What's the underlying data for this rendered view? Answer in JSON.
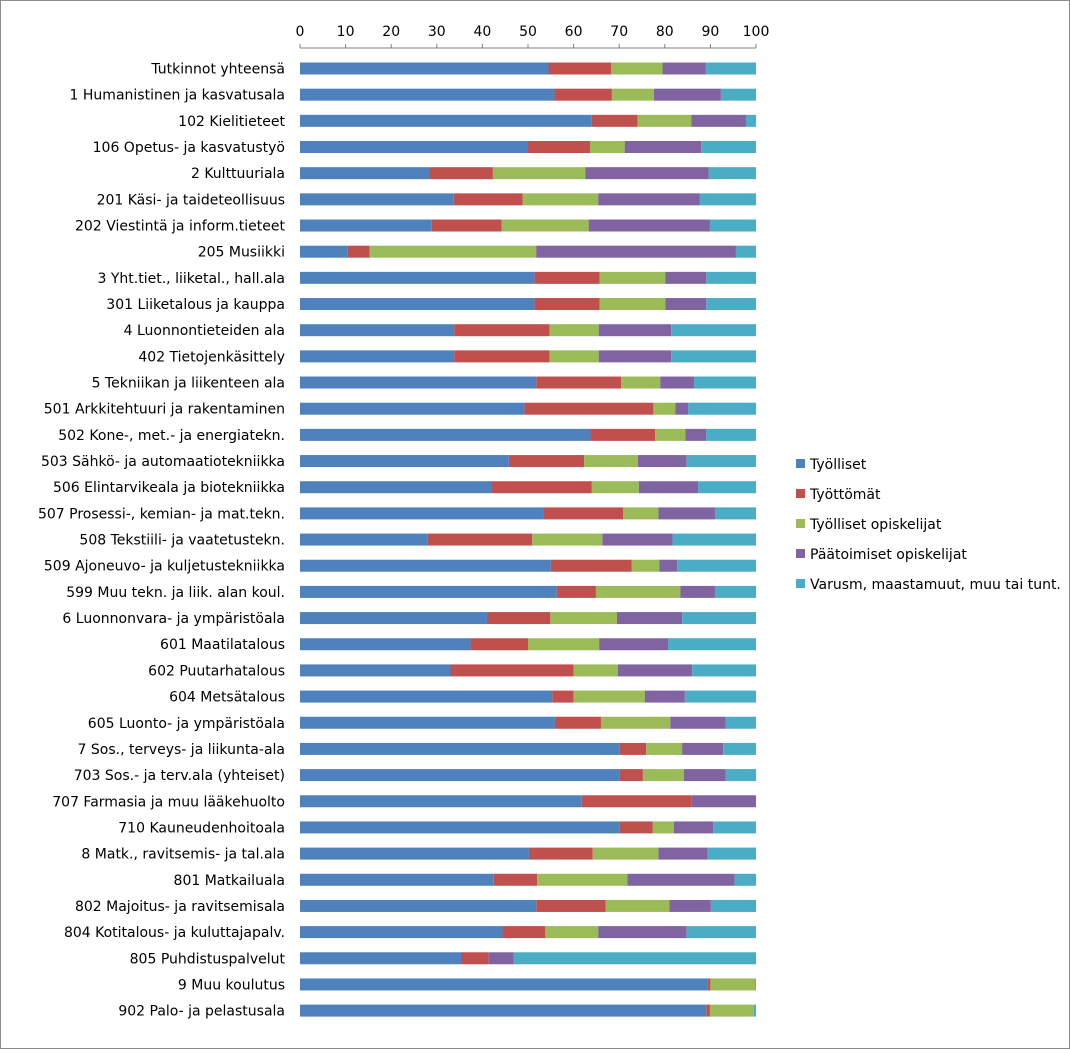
{
  "chart_data": {
    "type": "bar",
    "orientation": "horizontal",
    "stacked": true,
    "percent": true,
    "title": "",
    "xlabel": "",
    "ylabel": "",
    "xlim": [
      0,
      100
    ],
    "x_ticks": [
      "0",
      "10",
      "20",
      "30",
      "40",
      "50",
      "60",
      "70",
      "80",
      "90",
      "100"
    ],
    "gridlines": false,
    "legend_position": "right",
    "categories": [
      "Tutkinnot yhteensä",
      "1 Humanistinen ja kasvatusala",
      "102 Kielitieteet",
      "106 Opetus- ja kasvatustyö",
      "2 Kulttuuriala",
      "201 Käsi- ja taideteollisuus",
      "202 Viestintä ja inform.tieteet",
      "205 Musiikki",
      "3 Yht.tiet., liiketal., hall.ala",
      "301 Liiketalous ja kauppa",
      "4 Luonnontieteiden ala",
      "402 Tietojenkäsittely",
      "5 Tekniikan ja liikenteen ala",
      "501 Arkkitehtuuri ja rakentaminen",
      "502 Kone-, met.- ja energiatekn.",
      "503 Sähkö- ja automaatiotekniikka",
      "506 Elintarvikeala ja biotekniikka",
      "507 Prosessi-, kemian- ja mat.tekn.",
      "508 Tekstiili- ja vaatetustekn.",
      "509 Ajoneuvo- ja kuljetustekniikka",
      "599 Muu tekn. ja liik. alan koul.",
      "6 Luonnonvara- ja ympäristöala",
      "601 Maatilatalous",
      "602 Puutarhatalous",
      "604 Metsätalous",
      "605 Luonto- ja ympäristöala",
      "7 Sos., terveys- ja liikunta-ala",
      "703 Sos.- ja terv.ala (yhteiset)",
      "707 Farmasia ja muu lääkehuolto",
      "710 Kauneudenhoitoala",
      "8 Matk., ravitsemis- ja tal.ala",
      "801 Matkailuala",
      "802 Majoitus- ja ravitsemisala",
      "804 Kotitalous- ja kuluttajapalv.",
      "805 Puhdistuspalvelut",
      "9 Muu koulutus",
      "902 Palo- ja pelastusala"
    ],
    "series": [
      {
        "name": "Työlliset",
        "color": "#4F81BD",
        "values": [
          54.5,
          55.8,
          64,
          50,
          28.3,
          33.7,
          28.9,
          10.5,
          51.4,
          51.4,
          33.8,
          33.8,
          51.8,
          49.2,
          63.7,
          45.8,
          42,
          53.5,
          27.9,
          55,
          56.3,
          41,
          37.4,
          33,
          55.3,
          55.9,
          70,
          70,
          61.8,
          70,
          50.2,
          42.5,
          51.8,
          44.4,
          35.3,
          89.4,
          89.1
        ]
      },
      {
        "name": "Työttömät",
        "color": "#C0504D",
        "values": [
          13.7,
          12.6,
          10,
          13.6,
          14,
          15.1,
          15.3,
          4.8,
          14.3,
          14.3,
          20.9,
          20.9,
          18.6,
          28.3,
          14.2,
          16.5,
          22,
          17.4,
          23,
          17.7,
          8.6,
          13.9,
          12.6,
          27,
          4.7,
          10.1,
          5.9,
          5.2,
          24.1,
          7.3,
          14,
          9.5,
          15.2,
          9.4,
          6,
          0.6,
          0.8
        ]
      },
      {
        "name": "Työlliset opiskelijat",
        "color": "#9BBB59",
        "values": [
          11.3,
          9.2,
          11.8,
          7.6,
          20.3,
          16.6,
          19.1,
          36.5,
          14.4,
          14.4,
          10.8,
          10.8,
          8.6,
          4.8,
          6.6,
          11.8,
          10.3,
          7.7,
          15.4,
          6.1,
          18.5,
          14.6,
          15.6,
          9.7,
          15.6,
          15.2,
          7.9,
          9,
          0,
          4.7,
          14.4,
          19.8,
          14,
          11.6,
          0,
          9.8,
          9.6
        ]
      },
      {
        "name": "Päätoimiset opiskelijat",
        "color": "#8064A2",
        "values": [
          9.5,
          14.7,
          12,
          16.8,
          27,
          22.3,
          26.6,
          43.8,
          9,
          9,
          15.9,
          15.9,
          7.4,
          2.8,
          4.6,
          10.7,
          13,
          12.4,
          15.4,
          3.9,
          7.6,
          14.3,
          15.1,
          16.3,
          8.8,
          12.1,
          9,
          9.1,
          14.1,
          8.6,
          10.8,
          23.5,
          9.1,
          19.4,
          5.6,
          0,
          0
        ]
      },
      {
        "name": "Varusm, maastamuut, muu tai tunt.",
        "color": "#4BACC6",
        "values": [
          11,
          7.7,
          2.2,
          12,
          10.4,
          12.3,
          10.1,
          4.4,
          10.9,
          10.9,
          18.6,
          18.6,
          13.6,
          14.9,
          10.9,
          15.2,
          12.7,
          9,
          18.3,
          17.3,
          9,
          16.2,
          19.3,
          14,
          15.6,
          6.7,
          7.2,
          6.7,
          0,
          9.4,
          10.6,
          4.7,
          9.9,
          15.2,
          53.1,
          0.2,
          0.5
        ]
      }
    ]
  }
}
